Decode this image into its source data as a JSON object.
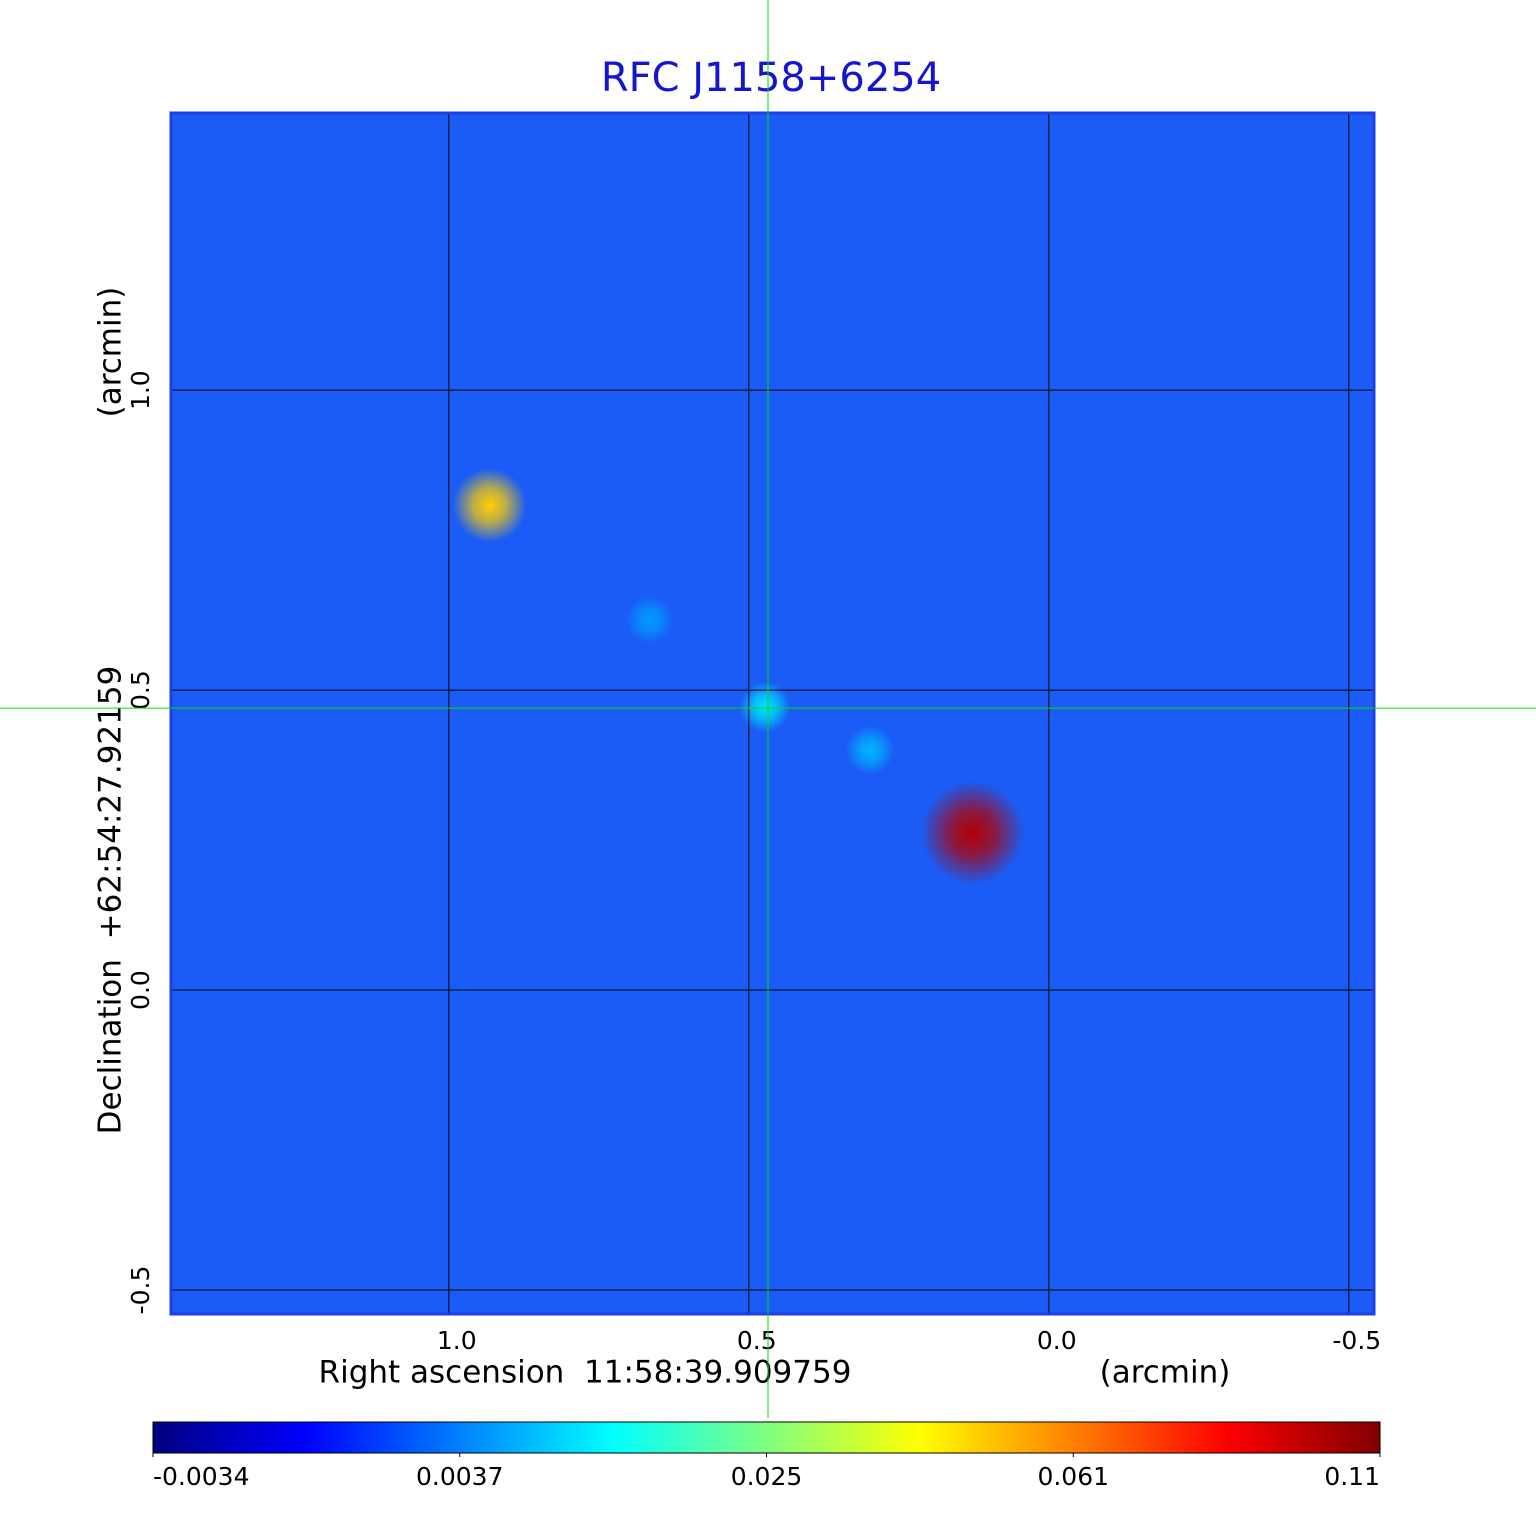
{
  "chart_data": {
    "type": "image",
    "title": "RFC J1158+6254",
    "xlabel": "Right ascension  11:58:39.909759",
    "xunit": "(arcmin)",
    "ylabel": "Declination  +62:54:27.92159",
    "yunit": "(arcmin)",
    "xlim": [
      1.463,
      -0.542
    ],
    "ylim": [
      -0.54,
      1.462
    ],
    "xticks": [
      {
        "value": 1,
        "label": "1.0"
      },
      0.5,
      {
        "value": 0,
        "label": "0.0"
      },
      -0.5
    ],
    "yticks": [
      -0.5,
      {
        "value": 0,
        "label": "0.0"
      },
      0.5,
      {
        "value": 1,
        "label": "1.0"
      }
    ],
    "grid": true,
    "background": "#1a5cf5",
    "crosshair": {
      "x": 0.468,
      "y": 0.47,
      "color": "#00e000"
    },
    "points": {
      "x": [
        0.932,
        0.665,
        0.473,
        0.298,
        0.127
      ],
      "y": [
        0.808,
        0.617,
        0.472,
        0.4,
        0.262
      ],
      "values": [
        0.05,
        0.006,
        0.012,
        0.008,
        0.1
      ]
    },
    "colorbar": {
      "ticks": [
        -0.0034,
        0.0037,
        0.025,
        0.061,
        0.11
      ],
      "colors": [
        "#000080",
        "#0000ff",
        "#0080ff",
        "#00ffff",
        "#80ff80",
        "#ffff00",
        "#ff8000",
        "#ff0000",
        "#800000"
      ]
    }
  }
}
